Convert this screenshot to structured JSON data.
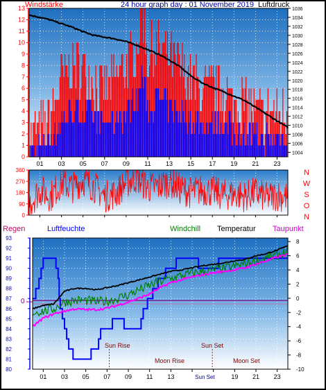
{
  "top": {
    "left_label": "Windstärke",
    "title": "24 hour graph day : 01 November 2019",
    "right_label": "Luftdruck",
    "y_left_ticks": [
      "0",
      "1",
      "2",
      "3",
      "4",
      "5",
      "6",
      "7",
      "8",
      "9",
      "10",
      "11",
      "12",
      "13"
    ],
    "y_right_ticks": [
      "1004",
      "1006",
      "1008",
      "1010",
      "1012",
      "1014",
      "1016",
      "1018",
      "1020",
      "1022",
      "1024",
      "1026",
      "1028",
      "1030",
      "1032",
      "1034",
      "1036"
    ],
    "x_ticks": [
      "01",
      "03",
      "05",
      "07",
      "09",
      "11",
      "13",
      "15",
      "17",
      "19",
      "21",
      "23"
    ]
  },
  "middle": {
    "y_ticks": [
      "0",
      "90",
      "180",
      "270",
      "360"
    ],
    "compass": [
      "N",
      "W",
      "S",
      "O",
      "N"
    ],
    "x_ticks": [
      "01",
      "03",
      "05",
      "07",
      "09",
      "11",
      "13",
      "15",
      "17",
      "19",
      "21",
      "23"
    ]
  },
  "bottom": {
    "labels": {
      "regen": "Regen",
      "luftfeuchte": "Luftfeuchte",
      "windchill": "Windchill",
      "temperatur": "Temperatur",
      "taupunkt": "Taupunkt"
    },
    "y_left_ticks": [
      "80",
      "81",
      "82",
      "83",
      "84",
      "85",
      "86",
      "87",
      "88",
      "89",
      "90",
      "91",
      "92",
      "93"
    ],
    "y_right_ticks": [
      "-10",
      "-8",
      "-6",
      "-4",
      "-2",
      "0",
      "2",
      "4",
      "6",
      "8"
    ],
    "zero_label": "0",
    "x_ticks": [
      "01",
      "03",
      "05",
      "07",
      "09",
      "11",
      "13",
      "15",
      "17",
      "19",
      "21",
      "23"
    ],
    "x_tick_overlays": {
      "sun_set": "Sun Set"
    },
    "events": {
      "sun_rise": "Sun Rise",
      "sun_set": "Sun Set",
      "moon_rise": "Moon Rise",
      "moon_set": "Moon Set"
    }
  },
  "colors": {
    "wind_gust": "#ff0000",
    "wind_avg": "#0000ff",
    "pressure": "#000000",
    "direction": "#ff0000",
    "humidity": "#0000ff",
    "temperature": "#000000",
    "windchill": "#008000",
    "dewpoint": "#ff00ff",
    "regen": "#cc0066",
    "zero_line": "#800080"
  },
  "chart_data": [
    {
      "type": "line",
      "title": "24 hour graph day : 01 November 2019",
      "ylabel": "Windstärke",
      "y2label": "Luftdruck",
      "xlim": [
        0,
        24
      ],
      "ylim": [
        0,
        13
      ],
      "y2lim": [
        1003,
        1036
      ],
      "series": [
        {
          "name": "Windstärke",
          "x": [
            0,
            1.5,
            2.5,
            3,
            4,
            5,
            6,
            7,
            8,
            9,
            10,
            10.5,
            11,
            12,
            13,
            14,
            15,
            16,
            17,
            18,
            19,
            20,
            21,
            22,
            23,
            24
          ],
          "values": [
            1,
            2,
            4,
            6,
            7,
            7,
            6,
            5,
            6,
            7,
            9,
            13,
            8,
            9,
            8,
            7,
            6,
            5,
            5,
            5,
            4,
            4,
            3,
            3,
            3,
            3
          ]
        },
        {
          "name": "Luftdruck",
          "x": [
            0,
            1,
            2,
            3,
            4,
            5,
            6,
            7,
            8,
            9,
            10,
            11,
            12,
            13,
            14,
            15,
            16,
            17,
            18,
            19,
            20,
            21,
            22,
            23,
            24
          ],
          "values": [
            1034.5,
            1034,
            1033.4,
            1032.6,
            1031.8,
            1030.8,
            1030,
            1029.6,
            1029.2,
            1028.6,
            1027.8,
            1026.8,
            1025.8,
            1024.5,
            1023,
            1021,
            1019.5,
            1018.4,
            1017.5,
            1016.5,
            1015.5,
            1014,
            1012.5,
            1011,
            1009.5
          ]
        }
      ]
    },
    {
      "type": "line",
      "xlim": [
        0,
        24
      ],
      "ylim": [
        0,
        360
      ],
      "series": [
        {
          "name": "Windrichtung",
          "x": [
            0,
            1,
            2,
            3,
            4,
            5,
            6,
            7,
            8,
            9,
            10,
            11,
            12,
            13,
            14,
            15,
            16,
            17,
            18,
            19,
            20,
            21,
            22,
            23,
            24
          ],
          "values": [
            90,
            200,
            150,
            260,
            220,
            280,
            230,
            150,
            170,
            260,
            300,
            220,
            230,
            270,
            210,
            180,
            200,
            190,
            160,
            170,
            150,
            180,
            140,
            160,
            140
          ]
        }
      ]
    },
    {
      "type": "line",
      "ylabel": "Luftfeuchte",
      "y2label": "Temperatur",
      "xlim": [
        0,
        24
      ],
      "ylim": [
        80,
        93
      ],
      "y2lim": [
        -10,
        8.5
      ],
      "series": [
        {
          "name": "Luftfeuchte",
          "x": [
            0,
            0.5,
            1,
            1.5,
            2,
            2.3,
            2.6,
            3,
            3.5,
            4,
            5,
            6,
            6.5,
            7,
            8,
            9,
            10,
            10.5,
            11,
            12,
            13,
            14,
            15,
            16,
            17,
            18,
            19,
            20,
            21,
            22,
            23,
            24
          ],
          "values": [
            87,
            88,
            91,
            91,
            91,
            90,
            86,
            84,
            82,
            81,
            81,
            82,
            84,
            84,
            85,
            84,
            84,
            86,
            87,
            89,
            90,
            91,
            91,
            90,
            90,
            91,
            91,
            91,
            91,
            91,
            91,
            91
          ]
        },
        {
          "name": "Temperatur",
          "x": [
            0,
            1,
            2,
            3,
            4,
            5,
            6,
            7,
            8,
            9,
            10,
            11,
            12,
            13,
            14,
            15,
            16,
            17,
            18,
            19,
            20,
            21,
            22,
            23,
            24
          ],
          "values": [
            -1.5,
            -1,
            -0.8,
            1,
            1.4,
            1.4,
            1.2,
            1.5,
            1.8,
            2.2,
            2.6,
            3,
            3.4,
            3.8,
            4,
            4.3,
            4.6,
            4.8,
            5,
            5.3,
            5.5,
            6,
            6.3,
            6.8,
            7.4
          ]
        },
        {
          "name": "Windchill",
          "x": [
            0,
            1,
            2,
            3,
            4,
            5,
            6,
            7,
            8,
            9,
            10,
            11,
            12,
            13,
            14,
            15,
            16,
            17,
            18,
            19,
            20,
            21,
            22,
            23,
            24
          ],
          "values": [
            -2,
            -1.8,
            -1.5,
            -0.5,
            -0.3,
            -0.3,
            -0.5,
            -0.4,
            0,
            0.5,
            1.2,
            1.8,
            2.4,
            2.8,
            3.2,
            3.5,
            3.8,
            4,
            4.2,
            4.5,
            4.9,
            5.3,
            5.7,
            6,
            6.6
          ]
        },
        {
          "name": "Taupunkt",
          "x": [
            0,
            1,
            2,
            3,
            4,
            5,
            6,
            7,
            8,
            9,
            10,
            11,
            12,
            13,
            14,
            15,
            16,
            17,
            18,
            19,
            20,
            21,
            22,
            23,
            24
          ],
          "values": [
            -4,
            -2.8,
            -2.2,
            -1.8,
            -1.5,
            -1.6,
            -1.6,
            -1.4,
            -1,
            -0.5,
            0,
            0.6,
            1.5,
            2.2,
            2.6,
            3,
            3.3,
            3.6,
            3.8,
            4,
            4.3,
            4.8,
            5.3,
            5.8,
            6.2
          ]
        }
      ]
    }
  ]
}
